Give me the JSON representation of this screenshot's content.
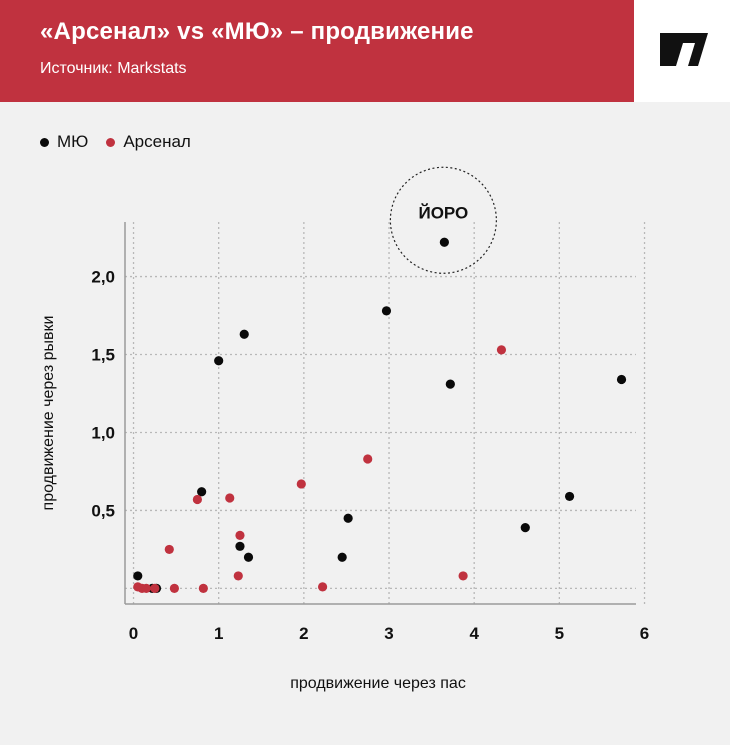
{
  "header": {
    "title": "«Арсенал» vs «МЮ» – продвижение",
    "subtitle": "Источник: Markstats"
  },
  "colors": {
    "brand": "#c0323f",
    "mu": "#0a0a0a",
    "arsenal": "#c0323f",
    "grid": "#b8b8b8"
  },
  "chart_data": {
    "type": "scatter",
    "title": "«Арсенал» vs «МЮ» – продвижение",
    "xlabel": "продвижение через пас",
    "ylabel": "продвижение через рывки",
    "xlim": [
      -0.1,
      5.9
    ],
    "ylim": [
      -0.1,
      2.35
    ],
    "x_ticks": [
      0,
      1,
      2,
      3,
      4,
      5,
      6
    ],
    "x_tick_labels": [
      "0",
      "1",
      "2",
      "3",
      "4",
      "5",
      "6"
    ],
    "y_ticks": [
      0.5,
      1.0,
      1.5,
      2.0
    ],
    "y_tick_labels": [
      "0,5",
      "1,0",
      "1,5",
      "2,0"
    ],
    "x_gridlines": [
      0,
      1,
      2,
      3,
      4,
      5,
      6
    ],
    "y_gridlines": [
      0,
      0.5,
      1.0,
      1.5,
      2.0
    ],
    "legend_position": "top-left",
    "series": [
      {
        "name": "МЮ",
        "color": "#0a0a0a",
        "points": [
          {
            "x": 0.05,
            "y": 0.08
          },
          {
            "x": 0.22,
            "y": 0.0
          },
          {
            "x": 0.27,
            "y": 0.0
          },
          {
            "x": 0.8,
            "y": 0.62
          },
          {
            "x": 1.0,
            "y": 1.46
          },
          {
            "x": 1.3,
            "y": 1.63
          },
          {
            "x": 1.25,
            "y": 0.27
          },
          {
            "x": 1.35,
            "y": 0.2
          },
          {
            "x": 2.52,
            "y": 0.45
          },
          {
            "x": 2.45,
            "y": 0.2
          },
          {
            "x": 2.97,
            "y": 1.78
          },
          {
            "x": 3.65,
            "y": 2.22
          },
          {
            "x": 3.72,
            "y": 1.31
          },
          {
            "x": 4.6,
            "y": 0.39
          },
          {
            "x": 5.12,
            "y": 0.59
          },
          {
            "x": 5.73,
            "y": 1.34
          }
        ]
      },
      {
        "name": "Арсенал",
        "color": "#c0323f",
        "points": [
          {
            "x": 0.05,
            "y": 0.01
          },
          {
            "x": 0.1,
            "y": 0.0
          },
          {
            "x": 0.15,
            "y": 0.0
          },
          {
            "x": 0.25,
            "y": 0.0
          },
          {
            "x": 0.42,
            "y": 0.25
          },
          {
            "x": 0.48,
            "y": 0.0
          },
          {
            "x": 0.75,
            "y": 0.57
          },
          {
            "x": 0.82,
            "y": 0.0
          },
          {
            "x": 1.13,
            "y": 0.58
          },
          {
            "x": 1.23,
            "y": 0.08
          },
          {
            "x": 1.25,
            "y": 0.34
          },
          {
            "x": 1.97,
            "y": 0.67
          },
          {
            "x": 2.22,
            "y": 0.01
          },
          {
            "x": 2.75,
            "y": 0.83
          },
          {
            "x": 3.87,
            "y": 0.08
          },
          {
            "x": 4.32,
            "y": 1.53
          }
        ]
      }
    ],
    "annotations": [
      {
        "text": "ЙОРО",
        "x": 3.65,
        "y": 2.22
      }
    ]
  }
}
